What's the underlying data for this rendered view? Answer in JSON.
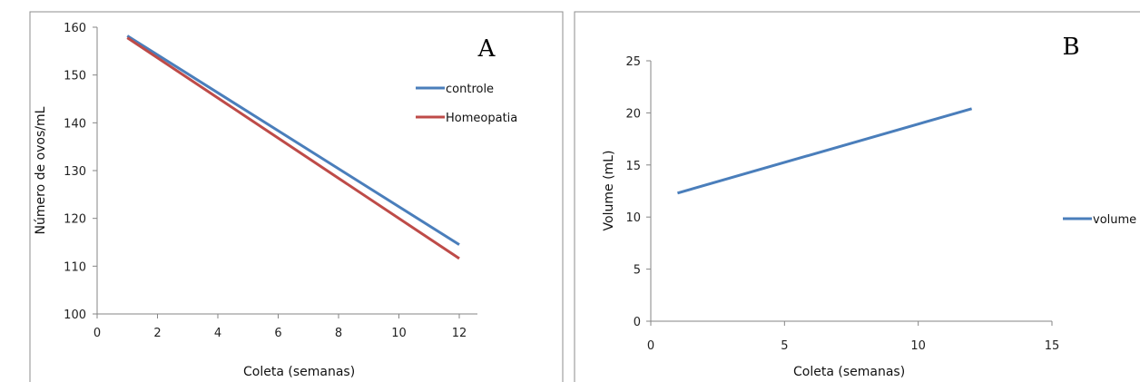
{
  "chart_data": [
    {
      "type": "line",
      "panel_label": "A",
      "xlabel": "Coleta (semanas)",
      "ylabel": "Número de ovos/mL",
      "xlim": [
        0,
        12
      ],
      "ylim": [
        100,
        160
      ],
      "x_ticks": [
        "0",
        "2",
        "4",
        "6",
        "8",
        "10",
        "12"
      ],
      "y_ticks": [
        "100",
        "110",
        "120",
        "130",
        "140",
        "150",
        "160"
      ],
      "grid": false,
      "legend_position": "right",
      "series": [
        {
          "name": "controle",
          "color": "#4a7ebb",
          "x": [
            1,
            12
          ],
          "y": [
            158.2,
            114.5
          ]
        },
        {
          "name": "Homeopatia",
          "color": "#be4b48",
          "x": [
            1,
            12
          ],
          "y": [
            157.8,
            111.6
          ]
        }
      ]
    },
    {
      "type": "line",
      "panel_label": "B",
      "xlabel": "Coleta (semanas)",
      "ylabel": "Volume (mL)",
      "xlim": [
        0,
        15
      ],
      "ylim": [
        0,
        25
      ],
      "x_ticks": [
        "0",
        "5",
        "10",
        "15"
      ],
      "y_ticks": [
        "0",
        "5",
        "10",
        "15",
        "20",
        "25"
      ],
      "grid": false,
      "legend_position": "right",
      "series": [
        {
          "name": "volume",
          "color": "#4a7ebb",
          "x": [
            1,
            12
          ],
          "y": [
            12.3,
            20.4
          ]
        }
      ]
    }
  ]
}
